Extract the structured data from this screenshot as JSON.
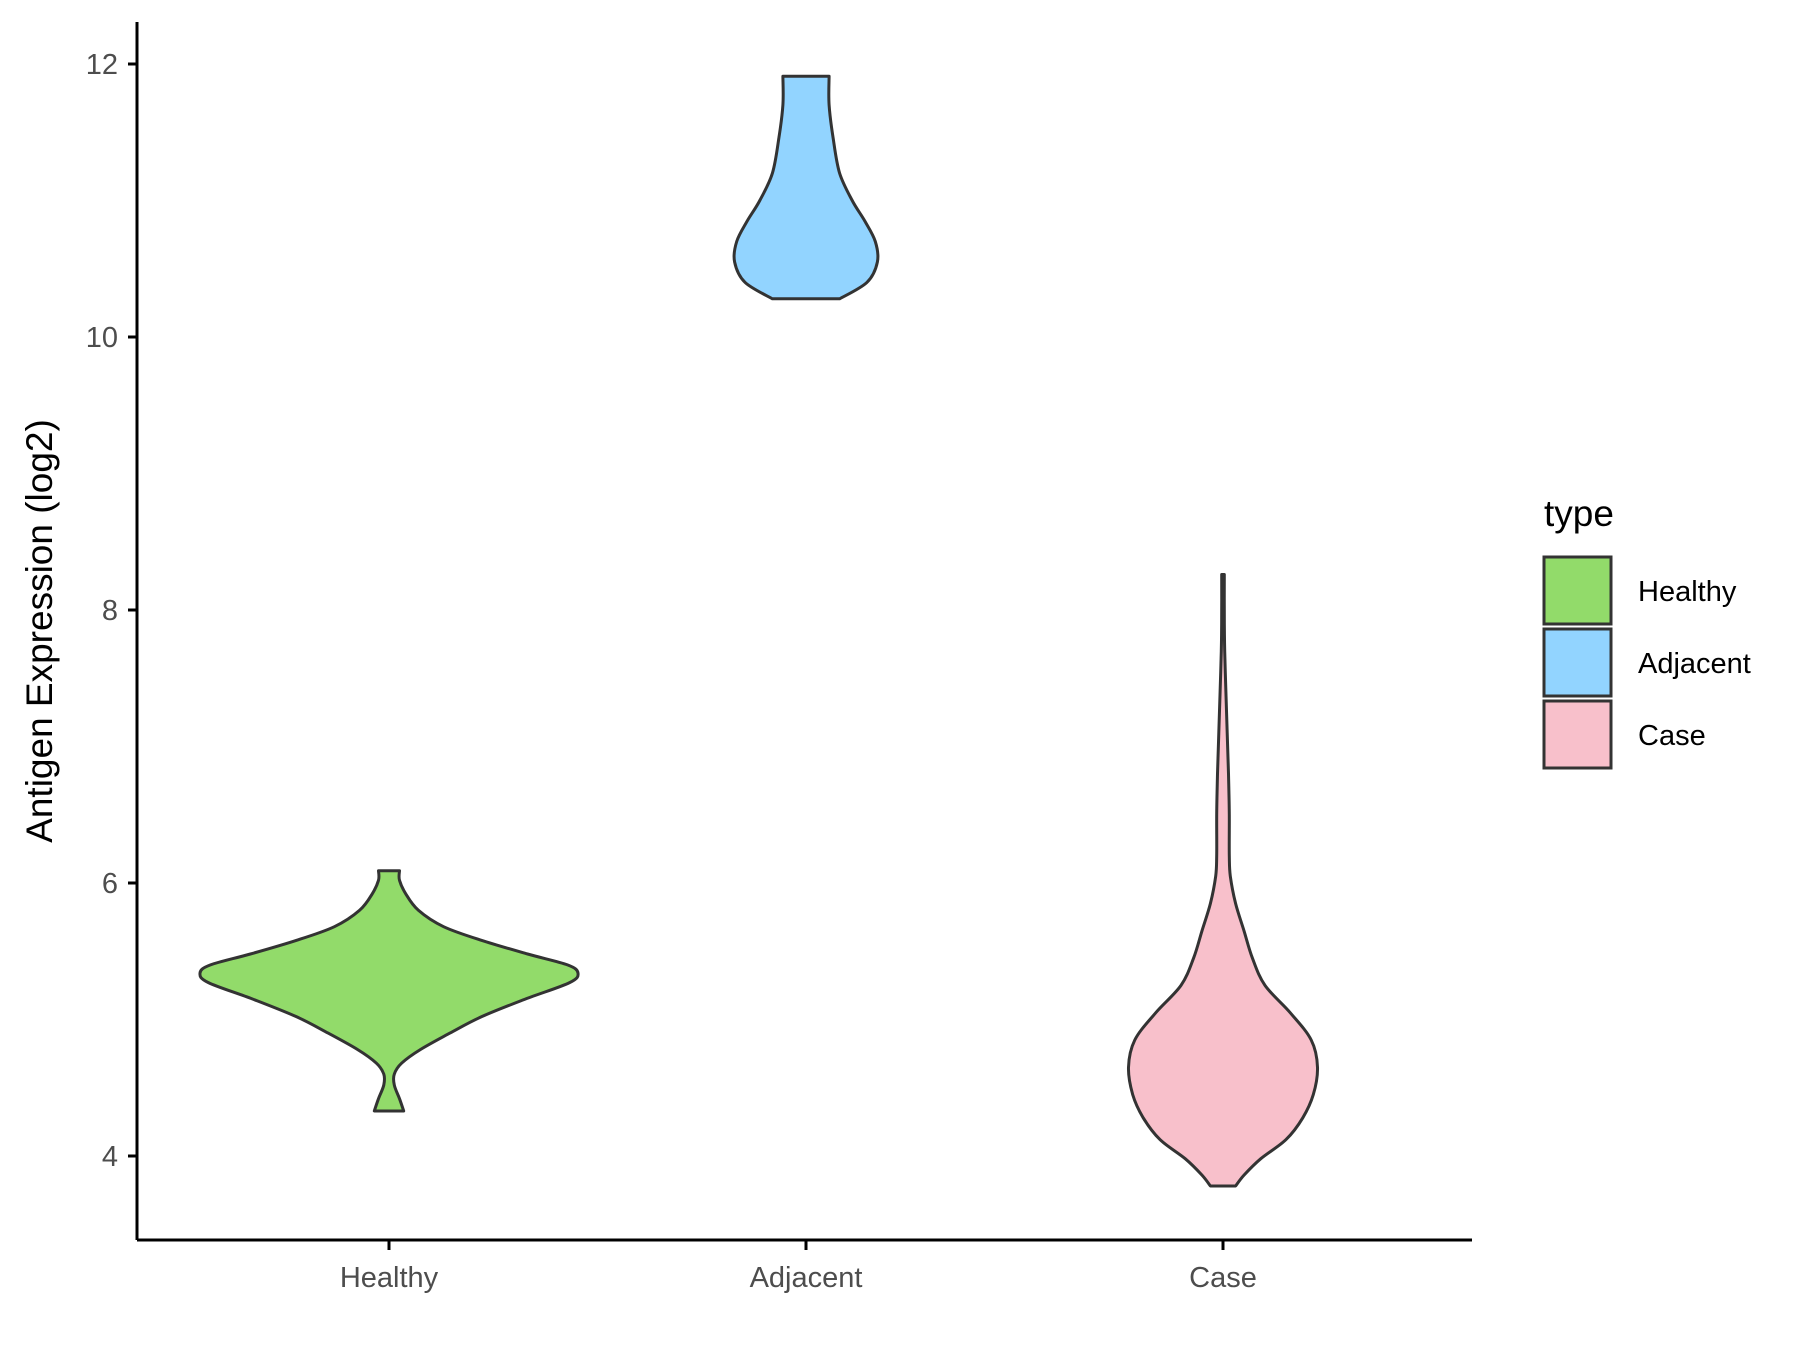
{
  "chart_data": {
    "type": "violin",
    "categories": [
      "Healthy",
      "Adjacent",
      "Case"
    ],
    "ylabel": "Antigen Expression (log2)",
    "xlabel": "",
    "ylim": [
      3.4,
      12.3
    ],
    "yticks": [
      4,
      6,
      8,
      10,
      12
    ],
    "legend": {
      "title": "type",
      "position": "right",
      "items": [
        {
          "label": "Healthy",
          "color": "#92db6a"
        },
        {
          "label": "Adjacent",
          "color": "#92d4ff"
        },
        {
          "label": "Case",
          "color": "#f8c0cb"
        }
      ]
    },
    "series": [
      {
        "category": "Healthy",
        "color": "#92db6a",
        "min": 4.33,
        "max": 6.09,
        "profile": [
          [
            4.33,
            0.07
          ],
          [
            4.42,
            0.05
          ],
          [
            4.52,
            0.025
          ],
          [
            4.6,
            0.025
          ],
          [
            4.68,
            0.06
          ],
          [
            4.78,
            0.15
          ],
          [
            4.9,
            0.29
          ],
          [
            5.02,
            0.44
          ],
          [
            5.15,
            0.65
          ],
          [
            5.27,
            0.86
          ],
          [
            5.34,
            0.9
          ],
          [
            5.4,
            0.85
          ],
          [
            5.48,
            0.66
          ],
          [
            5.58,
            0.44
          ],
          [
            5.68,
            0.26
          ],
          [
            5.8,
            0.14
          ],
          [
            5.92,
            0.08
          ],
          [
            6.02,
            0.05
          ],
          [
            6.09,
            0.05
          ]
        ]
      },
      {
        "category": "Adjacent",
        "color": "#92d4ff",
        "min": 10.28,
        "max": 11.91,
        "profile": [
          [
            10.28,
            0.16
          ],
          [
            10.4,
            0.29
          ],
          [
            10.55,
            0.34
          ],
          [
            10.7,
            0.33
          ],
          [
            10.85,
            0.28
          ],
          [
            11.0,
            0.22
          ],
          [
            11.2,
            0.16
          ],
          [
            11.45,
            0.13
          ],
          [
            11.7,
            0.11
          ],
          [
            11.91,
            0.11
          ]
        ]
      },
      {
        "category": "Case",
        "color": "#f8c0cb",
        "min": 3.78,
        "max": 8.26,
        "profile": [
          [
            3.78,
            0.06
          ],
          [
            3.86,
            0.1
          ],
          [
            3.98,
            0.18
          ],
          [
            4.12,
            0.3
          ],
          [
            4.28,
            0.38
          ],
          [
            4.45,
            0.43
          ],
          [
            4.65,
            0.45
          ],
          [
            4.85,
            0.42
          ],
          [
            5.05,
            0.32
          ],
          [
            5.25,
            0.2
          ],
          [
            5.45,
            0.14
          ],
          [
            5.65,
            0.1
          ],
          [
            5.85,
            0.06
          ],
          [
            6.05,
            0.035
          ],
          [
            6.2,
            0.03
          ],
          [
            6.5,
            0.03
          ],
          [
            6.8,
            0.026
          ],
          [
            7.1,
            0.02
          ],
          [
            7.4,
            0.014
          ],
          [
            7.7,
            0.008
          ],
          [
            8.0,
            0.006
          ],
          [
            8.26,
            0.006
          ]
        ]
      }
    ]
  }
}
